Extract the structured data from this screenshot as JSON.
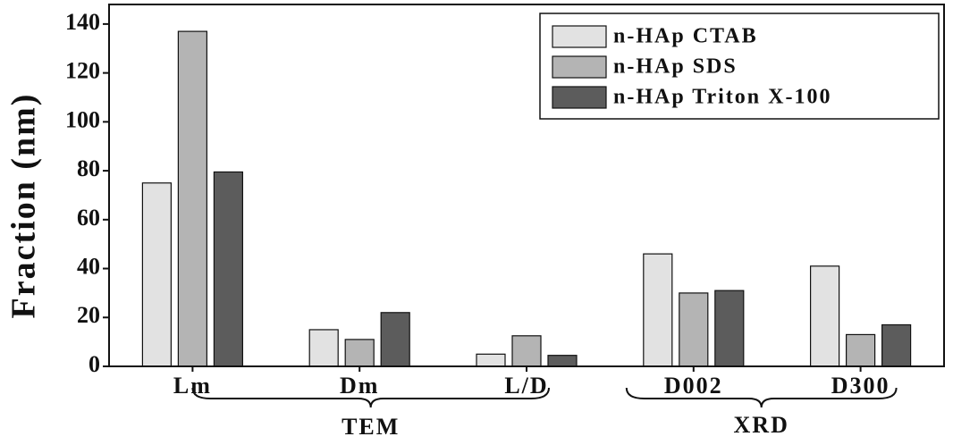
{
  "chart_data": {
    "type": "bar",
    "y_label": "Fraction (nm)",
    "categories": [
      "Lm",
      "Dm",
      "L/D",
      "D002",
      "D300"
    ],
    "groups": [
      {
        "label": "TEM"
      },
      {
        "label": "XRD"
      }
    ],
    "series": [
      {
        "name": "n-HAp CTAB",
        "color": "#e2e2e2",
        "values": [
          75,
          15,
          5,
          46,
          41
        ]
      },
      {
        "name": "n-HAp SDS",
        "color": "#b4b4b4",
        "values": [
          137,
          11,
          12.5,
          30,
          13
        ]
      },
      {
        "name": "n-HAp Triton X-100",
        "color": "#5c5c5c",
        "values": [
          79.5,
          22,
          4.5,
          31,
          17
        ]
      }
    ],
    "ylim": [
      0,
      148
    ],
    "yticks": [
      0,
      20,
      40,
      60,
      80,
      100,
      120,
      140
    ],
    "legend": "top-right",
    "grid": false
  }
}
